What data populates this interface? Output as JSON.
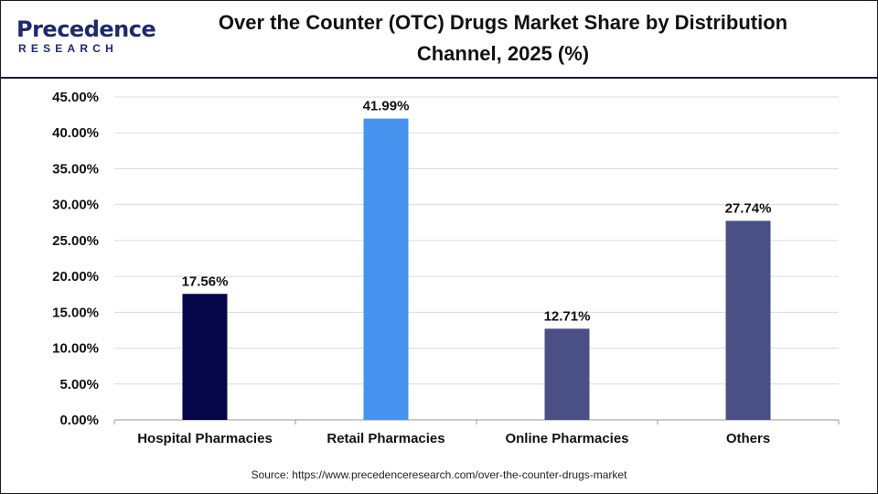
{
  "logo": {
    "main": "Precedence",
    "sub": "RESEARCH"
  },
  "colors": {
    "brand": "#1d2a6e"
  },
  "chart_data": {
    "type": "bar",
    "title": "Over the Counter (OTC) Drugs Market Share by Distribution Channel, 2025 (%)",
    "title_lines": [
      "Over the Counter (OTC) Drugs Market Share by Distribution",
      "Channel, 2025 (%)"
    ],
    "categories": [
      "Hospital Pharmacies",
      "Retail Pharmacies",
      "Online Pharmacies",
      "Others"
    ],
    "values": [
      17.56,
      41.99,
      12.71,
      27.74
    ],
    "data_labels": [
      "17.56%",
      "41.99%",
      "12.71%",
      "27.74%"
    ],
    "bar_colors": [
      "#05054a",
      "#4593ee",
      "#4a4f86",
      "#4a4f86"
    ],
    "ylim": [
      0,
      45
    ],
    "yticks": [
      "0.00%",
      "5.00%",
      "10.00%",
      "15.00%",
      "20.00%",
      "25.00%",
      "30.00%",
      "35.00%",
      "40.00%",
      "45.00%"
    ],
    "grid": true,
    "xlabel": "",
    "ylabel": ""
  },
  "source": "Source: https://www.precedenceresearch.com/over-the-counter-drugs-market"
}
